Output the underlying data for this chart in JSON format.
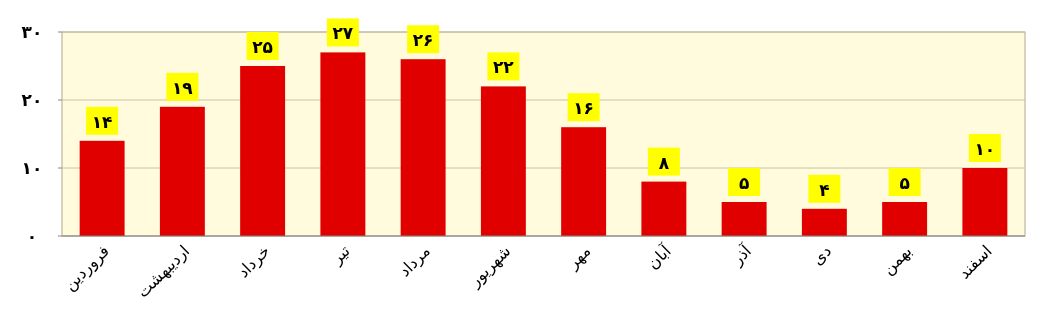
{
  "chart_data": {
    "type": "bar",
    "categories": [
      "فروردین",
      "اردیبهشت",
      "خرداد",
      "تیر",
      "مرداد",
      "شهریور",
      "مهر",
      "آبان",
      "آذر",
      "دی",
      "بهمن",
      "اسفند"
    ],
    "values": [
      14,
      19,
      25,
      27,
      26,
      22,
      16,
      8,
      5,
      4,
      5,
      10
    ],
    "value_labels": [
      "۱۴",
      "۱۹",
      "۲۵",
      "۲۷",
      "۲۶",
      "۲۲",
      "۱۶",
      "۸",
      "۵",
      "۴",
      "۵",
      "۱۰"
    ],
    "color": "#e00000",
    "ylim": [
      0,
      30
    ],
    "yticks": [
      {
        "value": 0,
        "label": "۰"
      },
      {
        "value": 10,
        "label": "۱۰"
      },
      {
        "value": 20,
        "label": "۲۰"
      },
      {
        "value": 30,
        "label": "۳۰"
      }
    ],
    "grid": "y"
  }
}
